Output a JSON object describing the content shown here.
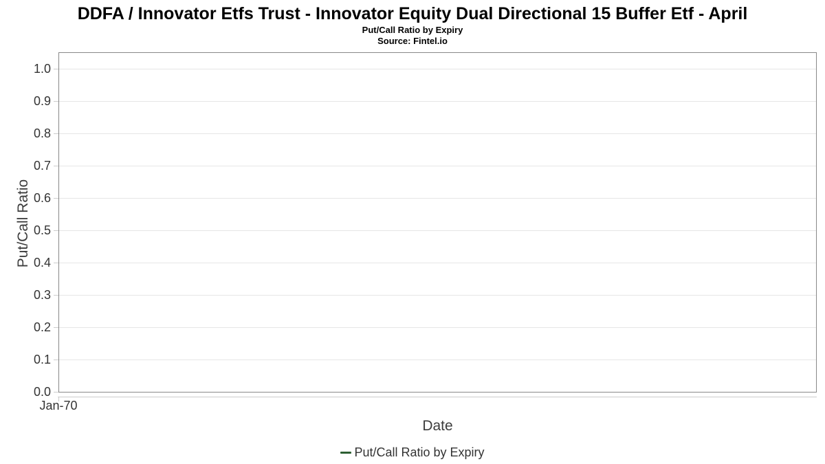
{
  "header": {
    "title": "DDFA / Innovator Etfs Trust - Innovator Equity Dual Directional 15 Buffer Etf - April",
    "subtitle": "Put/Call Ratio by Expiry",
    "source": "Source: Fintel.io"
  },
  "chart_data": {
    "type": "line",
    "title": "DDFA / Innovator Etfs Trust - Innovator Equity Dual Directional 15 Buffer Etf - April",
    "subtitle": "Put/Call Ratio by Expiry",
    "source": "Source: Fintel.io",
    "xlabel": "Date",
    "ylabel": "Put/Call Ratio",
    "ylim": [
      0,
      1.05
    ],
    "y_tick_labels": [
      "0.0",
      "0.1",
      "0.2",
      "0.3",
      "0.4",
      "0.5",
      "0.6",
      "0.7",
      "0.8",
      "0.9",
      "1.0"
    ],
    "x_ticks": [
      {
        "label": "Jan-70",
        "frac": 0
      }
    ],
    "grid": true,
    "legend_position": "bottom",
    "series": [
      {
        "name": "Put/Call Ratio by Expiry",
        "color": "#2d5f32",
        "x": [],
        "values": []
      }
    ]
  },
  "colors": {
    "series_green": "#2d5f32",
    "plot_border": "#888888",
    "gridline": "#e6e6e6",
    "axis_line": "#cccccc",
    "tick_text": "#333333",
    "axis_title_text": "#3c3c3c",
    "title_text": "#000000"
  }
}
